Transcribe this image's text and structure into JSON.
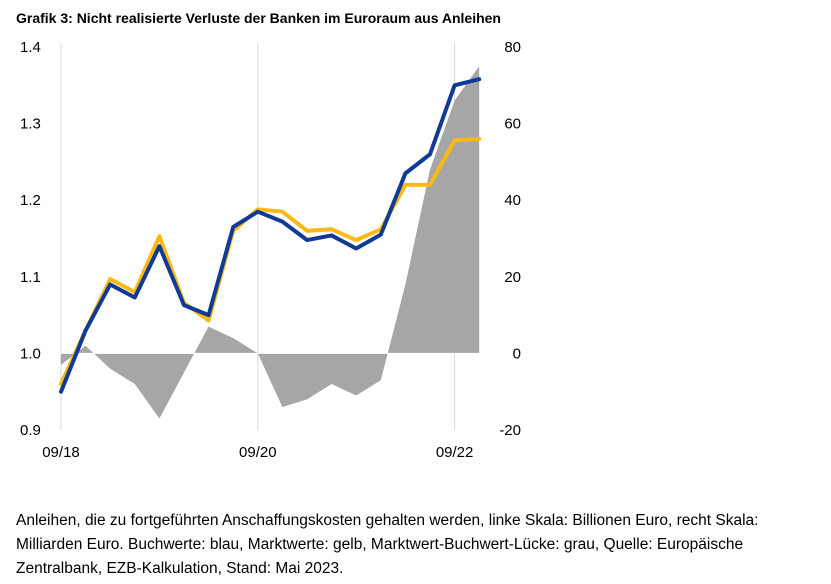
{
  "title": "Grafik 3: Nicht realisierte Verluste der Banken im Euroraum aus Anleihen",
  "note": "Anleihen, die zu fortgeführten Anschaffungskosten gehalten werden, linke Skala: Billionen Euro, recht Skala: Milliarden Euro. Buchwerte: blau, Marktwerte: gelb, Marktwert-Buchwert-Lücke: grau, Quelle: Europäische Zentralbank, EZB-Kalkulation, Stand: Mai 2023.",
  "colors": {
    "book": "#0f3a96",
    "market": "#fdb913",
    "gap": "#a6a6a6",
    "grid": "#d9d9d9"
  },
  "chart_data": {
    "type": "line",
    "x": [
      "09/18",
      "12/18",
      "03/19",
      "06/19",
      "09/19",
      "12/19",
      "03/20",
      "06/20",
      "09/20",
      "12/20",
      "03/21",
      "06/21",
      "09/21",
      "12/21",
      "03/22",
      "06/22",
      "09/22",
      "12/22"
    ],
    "x_tick_labels": [
      "09/18",
      "09/20",
      "09/22"
    ],
    "ylim_left": [
      0.9,
      1.4
    ],
    "yticks_left": [
      "0.9",
      "1.0",
      "1.1",
      "1.2",
      "1.3",
      "1.4"
    ],
    "ylim_right": [
      -20,
      80
    ],
    "yticks_right": [
      "-20",
      "0",
      "20",
      "40",
      "60",
      "80"
    ],
    "grid": "vertical at 09/18, 09/20, 09/22",
    "series": [
      {
        "axis": "right",
        "kind": "area",
        "values": [
          -3,
          2,
          -4,
          -8,
          -17,
          -5,
          7,
          4,
          0,
          -14,
          -12,
          -8,
          -11,
          -7,
          18,
          48,
          66,
          75
        ]
      },
      {
        "axis": "left",
        "kind": "line",
        "values": [
          0.95,
          1.03,
          1.09,
          1.073,
          1.14,
          1.063,
          1.05,
          1.165,
          1.185,
          1.172,
          1.148,
          1.154,
          1.137,
          1.155,
          1.235,
          1.26,
          1.35,
          1.358
        ]
      },
      {
        "axis": "left",
        "kind": "line",
        "values": [
          0.96,
          1.03,
          1.097,
          1.08,
          1.153,
          1.066,
          1.043,
          1.16,
          1.188,
          1.185,
          1.16,
          1.162,
          1.148,
          1.162,
          1.22,
          1.22,
          1.278,
          1.28
        ]
      }
    ]
  }
}
